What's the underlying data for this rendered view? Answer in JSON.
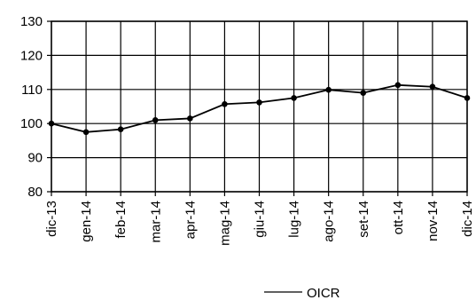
{
  "chart_data": {
    "type": "line",
    "title": "",
    "xlabel": "",
    "ylabel": "",
    "categories": [
      "dic-13",
      "gen-14",
      "feb-14",
      "mar-14",
      "apr-14",
      "mag-14",
      "giu-14",
      "lug-14",
      "ago-14",
      "set-14",
      "ott-14",
      "nov-14",
      "dic-14"
    ],
    "series": [
      {
        "name": "OICR",
        "values": [
          100,
          97.5,
          98.3,
          101,
          101.5,
          105.7,
          106.2,
          107.5,
          109.9,
          109,
          111.3,
          110.8,
          107.5
        ],
        "color": "#000000"
      }
    ],
    "ylim": [
      80,
      130
    ],
    "yticks": [
      80,
      90,
      100,
      110,
      120,
      130
    ],
    "grid": true,
    "legend_position": "bottom-right"
  }
}
